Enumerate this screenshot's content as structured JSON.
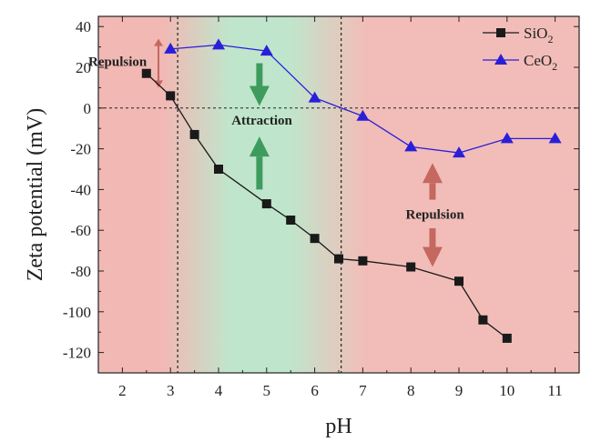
{
  "chart_data": {
    "type": "line",
    "xlabel": "pH",
    "ylabel": "Zeta potential (mV)",
    "xlim": [
      1.5,
      11.5
    ],
    "ylim": [
      -130,
      45
    ],
    "xticks": [
      2,
      3,
      4,
      5,
      6,
      7,
      8,
      9,
      10,
      11
    ],
    "yticks": [
      40,
      20,
      0,
      -20,
      -40,
      -60,
      -80,
      -100,
      -120
    ],
    "grid": false,
    "legend_position": "top-right",
    "series": [
      {
        "name": "SiO",
        "name_subscript": "2",
        "color": "#1a1a1a",
        "marker": "square",
        "x": [
          2.5,
          3,
          3.5,
          4,
          5,
          5.5,
          6,
          6.5,
          7,
          8,
          9,
          9.5,
          10
        ],
        "y": [
          17,
          6,
          -13,
          -30,
          -47,
          -55,
          -64,
          -74,
          -75,
          -78,
          -85,
          -104,
          -113
        ]
      },
      {
        "name": "CeO",
        "name_subscript": "2",
        "color": "#2a1fd8",
        "marker": "triangle",
        "x": [
          3,
          4,
          5,
          6,
          7,
          8,
          9,
          10,
          11
        ],
        "y": [
          29,
          31,
          28,
          5,
          -4,
          -19,
          -22,
          -15,
          -15
        ]
      }
    ],
    "regions": [
      {
        "from": 1.5,
        "to": 3.15,
        "kind": "repulsion",
        "color": "#f2b8b4"
      },
      {
        "from": 3.15,
        "to": 6.55,
        "kind": "attraction",
        "color": "#bfe6cc"
      },
      {
        "from": 6.55,
        "to": 11.5,
        "kind": "repulsion",
        "color": "#f2bdb8"
      }
    ],
    "vlines": [
      3.15,
      6.55
    ],
    "hline": 0,
    "annotations": [
      {
        "text": "Repulsion",
        "x": 1.9,
        "y": 23
      },
      {
        "text": "Attraction",
        "x": 4.9,
        "y": -6
      },
      {
        "text": "Repulsion",
        "x": 8.5,
        "y": -52
      }
    ],
    "arrows": [
      {
        "kind": "double",
        "x": 2.75,
        "y1": 34,
        "y2": 10,
        "color": "#c46860",
        "size": "small"
      },
      {
        "kind": "up",
        "x": 4.85,
        "y_tail": -40,
        "y_head": -14,
        "color": "#3e9b5e"
      },
      {
        "kind": "down",
        "x": 4.85,
        "y_tail": 22,
        "y_head": 1,
        "color": "#3e9b5e"
      },
      {
        "kind": "up",
        "x": 8.45,
        "y_tail": -45,
        "y_head": -27,
        "color": "#c46860"
      },
      {
        "kind": "down",
        "x": 8.45,
        "y_tail": -59,
        "y_head": -78,
        "color": "#c46860"
      }
    ]
  }
}
